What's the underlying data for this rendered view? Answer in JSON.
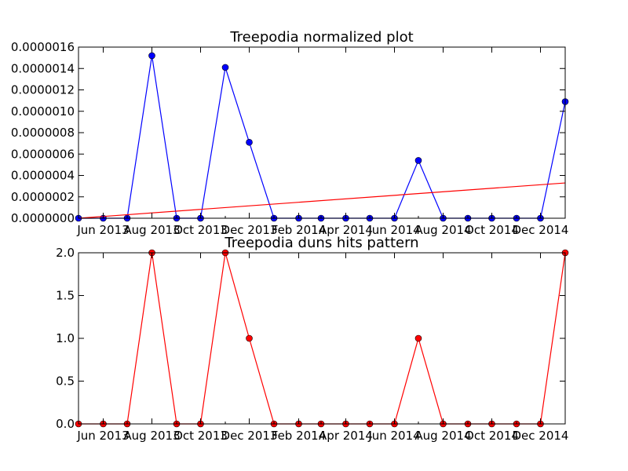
{
  "chart_data": [
    {
      "type": "line",
      "title": "Treepodia normalized plot",
      "xlabel": "",
      "ylabel": "",
      "x": [
        "2013-05-01",
        "2013-06-01",
        "2013-07-01",
        "2013-08-01",
        "2013-09-01",
        "2013-10-01",
        "2013-11-01",
        "2013-12-01",
        "2014-01-01",
        "2014-02-01",
        "2014-03-01",
        "2014-04-01",
        "2014-05-01",
        "2014-06-01",
        "2014-07-01",
        "2014-08-01",
        "2014-09-01",
        "2014-10-01",
        "2014-11-01",
        "2014-12-01",
        "2015-01-01"
      ],
      "xlim": [
        "2013-05-01",
        "2015-01-01"
      ],
      "ylim": [
        0,
        1.6e-06
      ],
      "x_tick_values": [
        "2013-06-01",
        "2013-08-01",
        "2013-10-01",
        "2013-12-01",
        "2014-02-01",
        "2014-04-01",
        "2014-06-01",
        "2014-08-01",
        "2014-10-01",
        "2014-12-01"
      ],
      "x_tick_labels": [
        "Jun 2013",
        "Aug 2013",
        "Oct 2013",
        "Dec 2013",
        "Feb 2014",
        "Apr 2014",
        "Jun 2014",
        "Aug 2014",
        "Oct 2014",
        "Dec 2014"
      ],
      "y_ticks": [
        0,
        2e-07,
        4e-07,
        6e-07,
        8e-07,
        1e-06,
        1.2e-06,
        1.4e-06,
        1.6e-06
      ],
      "y_tick_labels": [
        "0.0000000",
        "0.0000002",
        "0.0000004",
        "0.0000006",
        "0.0000008",
        "0.0000010",
        "0.0000012",
        "0.0000014",
        "0.0000016"
      ],
      "grid": false,
      "series": [
        {
          "values": [
            0,
            0,
            0,
            1.52e-06,
            0,
            0,
            1.41e-06,
            7.1e-07,
            0,
            0,
            0,
            0,
            0,
            0,
            5.4e-07,
            0,
            0,
            0,
            0,
            0,
            1.09e-06
          ],
          "color": "#0000ff",
          "marker": "circle"
        }
      ],
      "trend_line": {
        "x": [
          "2013-05-01",
          "2015-01-01"
        ],
        "y": [
          0,
          3.3e-07
        ],
        "color": "#ff0000"
      }
    },
    {
      "type": "line",
      "title": "Treepodia duns hits pattern",
      "xlabel": "",
      "ylabel": "",
      "x": [
        "2013-05-01",
        "2013-06-01",
        "2013-07-01",
        "2013-08-01",
        "2013-09-01",
        "2013-10-01",
        "2013-11-01",
        "2013-12-01",
        "2014-01-01",
        "2014-02-01",
        "2014-03-01",
        "2014-04-01",
        "2014-05-01",
        "2014-06-01",
        "2014-07-01",
        "2014-08-01",
        "2014-09-01",
        "2014-10-01",
        "2014-11-01",
        "2014-12-01",
        "2015-01-01"
      ],
      "xlim": [
        "2013-05-01",
        "2015-01-01"
      ],
      "ylim": [
        0,
        2
      ],
      "x_tick_values": [
        "2013-06-01",
        "2013-08-01",
        "2013-10-01",
        "2013-12-01",
        "2014-02-01",
        "2014-04-01",
        "2014-06-01",
        "2014-08-01",
        "2014-10-01",
        "2014-12-01"
      ],
      "x_tick_labels": [
        "Jun 2013",
        "Aug 2013",
        "Oct 2013",
        "Dec 2013",
        "Feb 2014",
        "Apr 2014",
        "Jun 2014",
        "Aug 2014",
        "Oct 2014",
        "Dec 2014"
      ],
      "y_ticks": [
        0,
        0.5,
        1,
        1.5,
        2
      ],
      "y_tick_labels": [
        "0.0",
        "0.5",
        "1.0",
        "1.5",
        "2.0"
      ],
      "grid": false,
      "series": [
        {
          "values": [
            0,
            0,
            0,
            2,
            0,
            0,
            2,
            1,
            0,
            0,
            0,
            0,
            0,
            0,
            1,
            0,
            0,
            0,
            0,
            0,
            2
          ],
          "color": "#ff0000",
          "marker": "circle"
        }
      ]
    }
  ]
}
